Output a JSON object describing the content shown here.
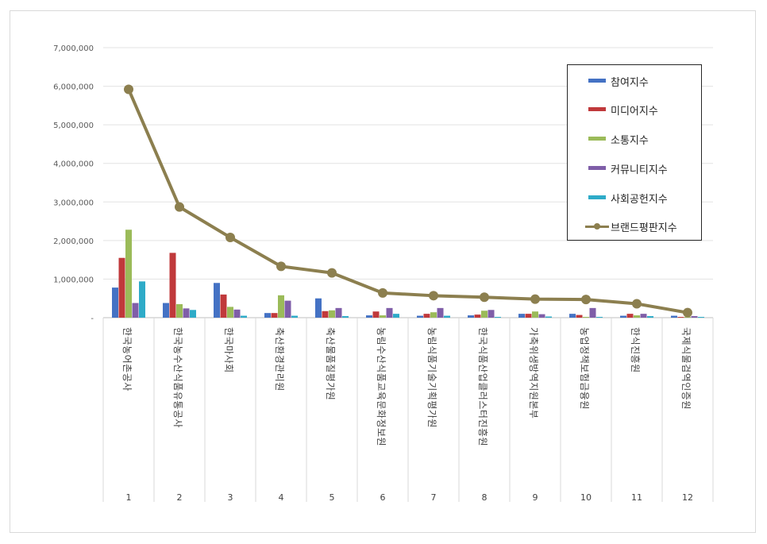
{
  "chart_data": {
    "type": "bar",
    "title": "",
    "xlabel": "",
    "ylabel": "",
    "ylim": [
      0,
      7000000
    ],
    "yticks": [
      "-",
      "1,000,000",
      "2,000,000",
      "3,000,000",
      "4,000,000",
      "5,000,000",
      "6,000,000",
      "7,000,000"
    ],
    "grid": true,
    "legend_position": "top-right",
    "index_labels": [
      "1",
      "2",
      "3",
      "4",
      "5",
      "6",
      "7",
      "8",
      "9",
      "10",
      "11",
      "12"
    ],
    "categories": [
      "한국농어촌공사",
      "한국농수산식품유통공사",
      "한국마사회",
      "축산환경관리원",
      "축산물품질평가원",
      "농림수산식품교육문화정보원",
      "농림식품기술기획평가원",
      "한국식품산업클러스터진흥원",
      "가축위생방역지원본부",
      "농업정책보험금융원",
      "한식진흥원",
      "국제식물검역인증원"
    ],
    "series": [
      {
        "name": "참여지수",
        "kind": "bar",
        "color": "#4472c4",
        "values": [
          780000,
          380000,
          900000,
          120000,
          500000,
          60000,
          50000,
          60000,
          100000,
          100000,
          50000,
          50000
        ]
      },
      {
        "name": "미디어지수",
        "kind": "bar",
        "color": "#c0393b",
        "values": [
          1550000,
          1680000,
          600000,
          120000,
          170000,
          160000,
          100000,
          80000,
          100000,
          70000,
          100000,
          20000
        ]
      },
      {
        "name": "소통지수",
        "kind": "bar",
        "color": "#9bbb59",
        "values": [
          2280000,
          350000,
          280000,
          580000,
          190000,
          60000,
          140000,
          180000,
          160000,
          20000,
          60000,
          20000
        ]
      },
      {
        "name": "커뮤니티지수",
        "kind": "bar",
        "color": "#7f5ea8",
        "values": [
          380000,
          240000,
          210000,
          440000,
          250000,
          250000,
          250000,
          200000,
          90000,
          250000,
          100000,
          40000
        ]
      },
      {
        "name": "사회공헌지수",
        "kind": "bar",
        "color": "#2eabc8",
        "values": [
          940000,
          200000,
          50000,
          50000,
          40000,
          100000,
          50000,
          20000,
          30000,
          20000,
          40000,
          20000
        ]
      },
      {
        "name": "브랜드평판지수",
        "kind": "line",
        "color": "#8c7f4f",
        "values": [
          5920000,
          2870000,
          2080000,
          1330000,
          1160000,
          640000,
          570000,
          530000,
          480000,
          470000,
          360000,
          130000
        ]
      }
    ]
  }
}
